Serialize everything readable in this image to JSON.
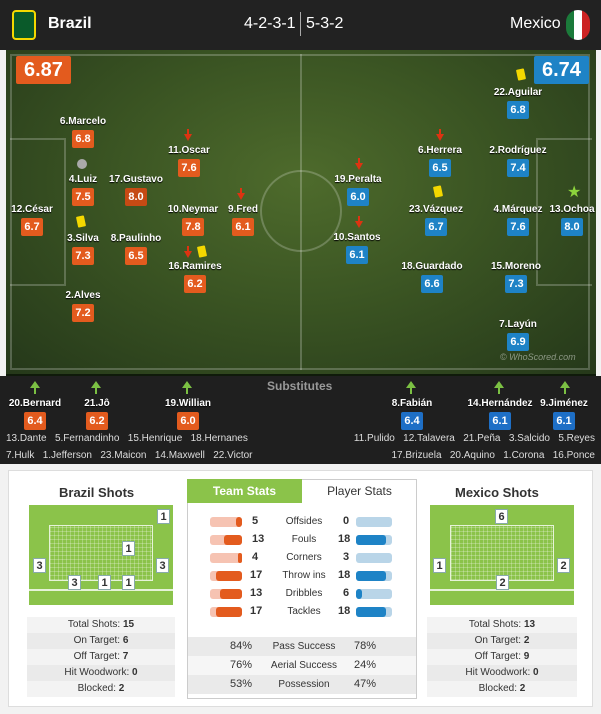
{
  "header": {
    "home_team": "Brazil",
    "away_team": "Mexico",
    "home_formation": "4-2-3-1",
    "away_formation": "5-3-2",
    "home_rating": "6.87",
    "away_rating": "6.74"
  },
  "watermark": "© WhoScored.com",
  "home_players": [
    {
      "name": "12.César",
      "rating": "6.7"
    },
    {
      "name": "6.Marcelo",
      "rating": "6.8"
    },
    {
      "name": "4.Luiz",
      "rating": "7.5"
    },
    {
      "name": "3.Silva",
      "rating": "7.3"
    },
    {
      "name": "2.Alves",
      "rating": "7.2"
    },
    {
      "name": "17.Gustavo",
      "rating": "8.0"
    },
    {
      "name": "8.Paulinho",
      "rating": "6.5"
    },
    {
      "name": "11.Oscar",
      "rating": "7.6"
    },
    {
      "name": "10.Neymar",
      "rating": "7.8"
    },
    {
      "name": "16.Ramires",
      "rating": "6.2"
    },
    {
      "name": "9.Fred",
      "rating": "6.1"
    }
  ],
  "away_players": [
    {
      "name": "22.Aguilar",
      "rating": "6.8"
    },
    {
      "name": "6.Herrera",
      "rating": "6.5"
    },
    {
      "name": "2.Rodríguez",
      "rating": "7.4"
    },
    {
      "name": "19.Peralta",
      "rating": "6.0"
    },
    {
      "name": "23.Vázquez",
      "rating": "6.7"
    },
    {
      "name": "4.Márquez",
      "rating": "7.6"
    },
    {
      "name": "13.Ochoa",
      "rating": "8.0"
    },
    {
      "name": "10.Santos",
      "rating": "6.1"
    },
    {
      "name": "18.Guardado",
      "rating": "6.6"
    },
    {
      "name": "15.Moreno",
      "rating": "7.3"
    },
    {
      "name": "7.Layún",
      "rating": "6.9"
    }
  ],
  "substitutes": {
    "title": "Substitutes",
    "home_used": [
      {
        "name": "20.Bernard",
        "rating": "6.4"
      },
      {
        "name": "21.Jô",
        "rating": "6.2"
      },
      {
        "name": "19.Willian",
        "rating": "6.0"
      }
    ],
    "away_used": [
      {
        "name": "8.Fabián",
        "rating": "6.4"
      },
      {
        "name": "14.Hernández",
        "rating": "6.1"
      },
      {
        "name": "9.Jiménez",
        "rating": "6.1"
      }
    ],
    "home_bench_1": [
      "13.Dante",
      "5.Fernandinho",
      "15.Henrique",
      "18.Hernanes"
    ],
    "home_bench_2": [
      "7.Hulk",
      "1.Jefferson",
      "23.Maicon",
      "14.Maxwell",
      "22.Victor"
    ],
    "away_bench_1": [
      "11.Pulido",
      "12.Talavera",
      "21.Peña",
      "3.Salcido",
      "5.Reyes"
    ],
    "away_bench_2": [
      "17.Brizuela",
      "20.Aquino",
      "1.Corona",
      "16.Ponce"
    ]
  },
  "home_shots": {
    "title": "Brazil Shots",
    "zones": [
      "1",
      "3",
      "1",
      "3",
      "3",
      "1",
      "1"
    ],
    "summary": [
      {
        "label": "Total Shots:",
        "value": "15"
      },
      {
        "label": "On Target:",
        "value": "6"
      },
      {
        "label": "Off Target:",
        "value": "7"
      },
      {
        "label": "Hit Woodwork:",
        "value": "0"
      },
      {
        "label": "Blocked:",
        "value": "2"
      }
    ]
  },
  "away_shots": {
    "title": "Mexico Shots",
    "zones": [
      "6",
      "1",
      "2",
      "2"
    ],
    "summary": [
      {
        "label": "Total Shots:",
        "value": "13"
      },
      {
        "label": "On Target:",
        "value": "2"
      },
      {
        "label": "Off Target:",
        "value": "9"
      },
      {
        "label": "Hit Woodwork:",
        "value": "0"
      },
      {
        "label": "Blocked:",
        "value": "2"
      }
    ]
  },
  "team_stats": {
    "tab_team": "Team Stats",
    "tab_player": "Player Stats",
    "rows": [
      {
        "label": "Offsides",
        "home": "5",
        "away": "0",
        "home_frac": 1.0,
        "away_frac": 0.0
      },
      {
        "label": "Fouls",
        "home": "13",
        "away": "18",
        "home_frac": 0.42,
        "away_frac": 0.58
      },
      {
        "label": "Corners",
        "home": "4",
        "away": "3",
        "home_frac": 0.57,
        "away_frac": 0.43
      },
      {
        "label": "Throw ins",
        "home": "17",
        "away": "18",
        "home_frac": 0.49,
        "away_frac": 0.51
      },
      {
        "label": "Dribbles",
        "home": "13",
        "away": "6",
        "home_frac": 0.68,
        "away_frac": 0.32
      },
      {
        "label": "Tackles",
        "home": "17",
        "away": "18",
        "home_frac": 0.49,
        "away_frac": 0.51
      }
    ],
    "pct_rows": [
      {
        "label": "Pass Success",
        "home": "84%",
        "away": "78%"
      },
      {
        "label": "Aerial Success",
        "home": "76%",
        "away": "24%"
      },
      {
        "label": "Possession",
        "home": "53%",
        "away": "47%"
      }
    ]
  },
  "colors": {
    "home": "#e35b1e",
    "away": "#1e83c6"
  }
}
